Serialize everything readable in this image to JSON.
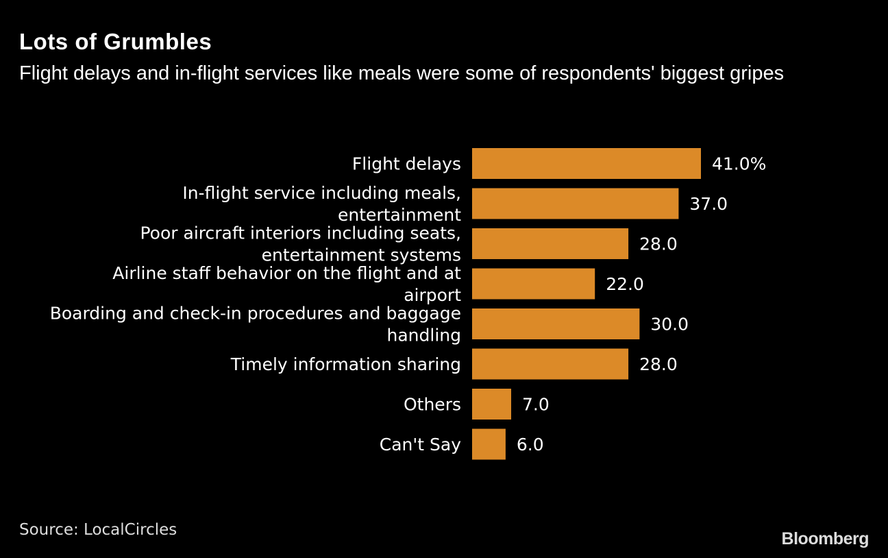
{
  "title": "Lots of Grumbles",
  "subtitle": "Flight delays and in-flight services like meals were some of respondents' biggest gripes",
  "source": "Source: LocalCircles",
  "logo": "Bloomberg",
  "chart_data": {
    "type": "bar",
    "orientation": "horizontal",
    "categories": [
      "Flight delays",
      "In-flight service including meals, entertainment",
      "Poor aircraft interiors including seats, entertainment systems",
      "Airline staff behavior on the flight and at airport",
      "Boarding and check-in procedures and baggage handling",
      "Timely information sharing",
      "Others",
      "Can't Say"
    ],
    "category_lines": [
      [
        "Flight delays"
      ],
      [
        "In-flight service including meals,",
        "entertainment"
      ],
      [
        "Poor aircraft interiors including seats,",
        "entertainment systems"
      ],
      [
        "Airline staff behavior on the flight and at",
        "airport"
      ],
      [
        "Boarding and check-in procedures and baggage",
        "handling"
      ],
      [
        "Timely information sharing"
      ],
      [
        "Others"
      ],
      [
        "Can't Say"
      ]
    ],
    "values": [
      41.0,
      37.0,
      28.0,
      22.0,
      30.0,
      28.0,
      7.0,
      6.0
    ],
    "data_labels": [
      "41.0%",
      "37.0",
      "28.0",
      "22.0",
      "30.0",
      "28.0",
      "7.0",
      "6.0"
    ],
    "unit": "%",
    "xlim": [
      0,
      41
    ],
    "grid": false,
    "bar_color": "#DC8A28",
    "background": "#000000"
  }
}
